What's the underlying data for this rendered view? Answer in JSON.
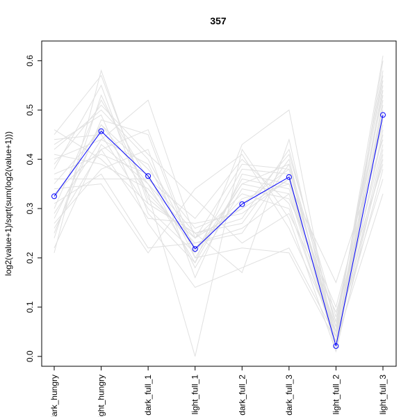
{
  "chart_data": {
    "type": "line",
    "title": "357",
    "xlabel": "",
    "ylabel": "log2(value+1)/sqrt(sum(log2(value+1)))",
    "categories": [
      "dark_hungry",
      "light_hungry",
      "dark_full_1",
      "light_full_1",
      "dark_full_2",
      "dark_full_3",
      "light_full_2",
      "light_full_3"
    ],
    "ylim": [
      -0.02,
      0.64
    ],
    "yticks": [
      0.0,
      0.1,
      0.2,
      0.3,
      0.4,
      0.5,
      0.6
    ],
    "ytick_labels": [
      "0.0",
      "0.1",
      "0.2",
      "0.3",
      "0.4",
      "0.5",
      "0.6"
    ],
    "highlight": {
      "values": [
        0.325,
        0.457,
        0.366,
        0.218,
        0.309,
        0.364,
        0.021,
        0.49
      ],
      "color": "#0000ff",
      "marker": "open-circle"
    },
    "background_series": [
      [
        0.45,
        0.57,
        0.32,
        0.24,
        0.39,
        0.38,
        0.05,
        0.61
      ],
      [
        0.38,
        0.55,
        0.29,
        0.19,
        0.43,
        0.5,
        0.02,
        0.6
      ],
      [
        0.3,
        0.52,
        0.36,
        0.25,
        0.28,
        0.42,
        0.06,
        0.58
      ],
      [
        0.42,
        0.5,
        0.4,
        0.22,
        0.32,
        0.35,
        0.04,
        0.57
      ],
      [
        0.25,
        0.48,
        0.45,
        0.2,
        0.35,
        0.33,
        0.03,
        0.55
      ],
      [
        0.28,
        0.47,
        0.38,
        0.26,
        0.3,
        0.41,
        0.08,
        0.53
      ],
      [
        0.35,
        0.46,
        0.33,
        0.23,
        0.25,
        0.39,
        0.02,
        0.52
      ],
      [
        0.44,
        0.45,
        0.3,
        0.21,
        0.38,
        0.37,
        0.01,
        0.51
      ],
      [
        0.4,
        0.44,
        0.52,
        0.24,
        0.33,
        0.3,
        0.03,
        0.5
      ],
      [
        0.22,
        0.43,
        0.35,
        0.19,
        0.36,
        0.34,
        0.05,
        0.49
      ],
      [
        0.33,
        0.42,
        0.28,
        0.27,
        0.29,
        0.36,
        0.07,
        0.48
      ],
      [
        0.37,
        0.41,
        0.37,
        0.18,
        0.34,
        0.32,
        0.1,
        0.47
      ],
      [
        0.46,
        0.4,
        0.31,
        0.25,
        0.27,
        0.4,
        0.02,
        0.46
      ],
      [
        0.41,
        0.39,
        0.34,
        0.22,
        0.31,
        0.38,
        0.04,
        0.45
      ],
      [
        0.27,
        0.38,
        0.42,
        0.16,
        0.37,
        0.35,
        0.15,
        0.44
      ],
      [
        0.31,
        0.37,
        0.22,
        0.23,
        0.26,
        0.33,
        0.06,
        0.43
      ],
      [
        0.36,
        0.36,
        0.36,
        0.28,
        0.4,
        0.31,
        0.03,
        0.42
      ],
      [
        0.24,
        0.53,
        0.33,
        0.0,
        0.42,
        0.28,
        0.01,
        0.41
      ],
      [
        0.43,
        0.49,
        0.27,
        0.14,
        0.18,
        0.22,
        0.04,
        0.4
      ],
      [
        0.39,
        0.51,
        0.41,
        0.32,
        0.23,
        0.29,
        0.09,
        0.39
      ],
      [
        0.21,
        0.58,
        0.31,
        0.25,
        0.17,
        0.44,
        0.02,
        0.38
      ],
      [
        0.34,
        0.35,
        0.21,
        0.34,
        0.41,
        0.26,
        0.05,
        0.36
      ],
      [
        0.29,
        0.44,
        0.39,
        0.2,
        0.22,
        0.21,
        0.03,
        0.33
      ],
      [
        0.32,
        0.47,
        0.35,
        0.24,
        0.3,
        0.36,
        0.02,
        0.54
      ],
      [
        0.26,
        0.42,
        0.46,
        0.21,
        0.35,
        0.39,
        0.07,
        0.56
      ]
    ],
    "background_color": "#e0e0e0",
    "grid": false,
    "legend": "none"
  }
}
